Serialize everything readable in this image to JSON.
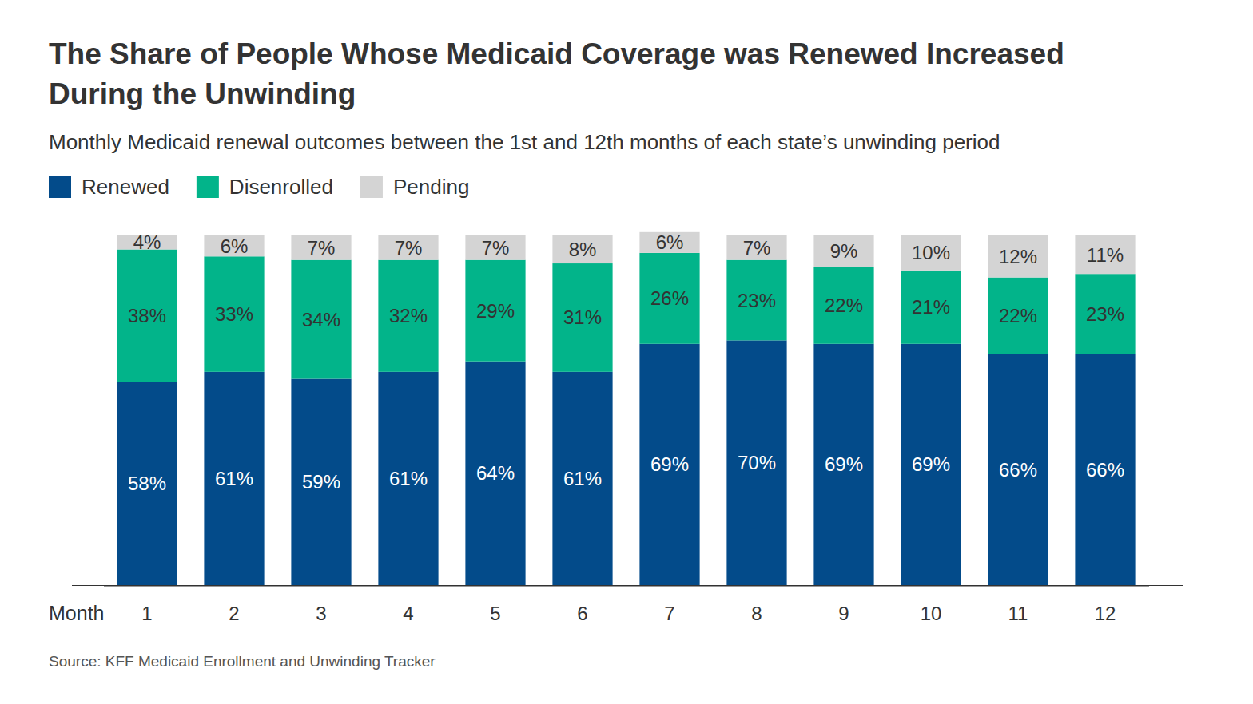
{
  "chart_data": {
    "type": "bar",
    "stacked": true,
    "title": "The Share of People Whose Medicaid Coverage was Renewed Increased During the Unwinding",
    "subtitle": "Monthly Medicaid renewal outcomes between the 1st and 12th months of each state’s unwinding period",
    "source": "Source: KFF Medicaid Enrollment and Unwinding Tracker",
    "x_label": "Month",
    "categories": [
      "1",
      "2",
      "3",
      "4",
      "5",
      "6",
      "7",
      "8",
      "9",
      "10",
      "11",
      "12"
    ],
    "series": [
      {
        "name": "Renewed",
        "color": "#034b8a",
        "values": [
          58,
          61,
          59,
          61,
          64,
          61,
          69,
          70,
          69,
          69,
          66,
          66
        ],
        "value_labels": [
          "58%",
          "61%",
          "59%",
          "61%",
          "64%",
          "61%",
          "69%",
          "70%",
          "69%",
          "69%",
          "66%",
          "66%"
        ]
      },
      {
        "name": "Disenrolled",
        "color": "#02b48a",
        "values": [
          38,
          33,
          34,
          32,
          29,
          31,
          26,
          23,
          22,
          21,
          22,
          23
        ],
        "value_labels": [
          "38%",
          "33%",
          "34%",
          "32%",
          "29%",
          "31%",
          "26%",
          "23%",
          "22%",
          "21%",
          "22%",
          "23%"
        ]
      },
      {
        "name": "Pending",
        "color": "#d4d4d4",
        "values": [
          4,
          6,
          7,
          7,
          7,
          8,
          6,
          7,
          9,
          10,
          12,
          11
        ],
        "value_labels": [
          "4%",
          "6%",
          "7%",
          "7%",
          "7%",
          "8%",
          "6%",
          "7%",
          "9%",
          "10%",
          "12%",
          "11%"
        ]
      }
    ],
    "ylim": [
      0,
      101
    ],
    "grid": false,
    "legend": "top-left",
    "data_labels": true,
    "tick_labels": "x"
  }
}
